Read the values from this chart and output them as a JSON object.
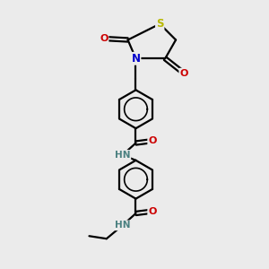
{
  "bg_color": "#ebebeb",
  "bond_color": "#000000",
  "atom_colors": {
    "S": "#b8b800",
    "N": "#0000cc",
    "O": "#cc0000",
    "H": "#4a8080"
  },
  "figsize": [
    3.0,
    3.0
  ],
  "dpi": 100
}
